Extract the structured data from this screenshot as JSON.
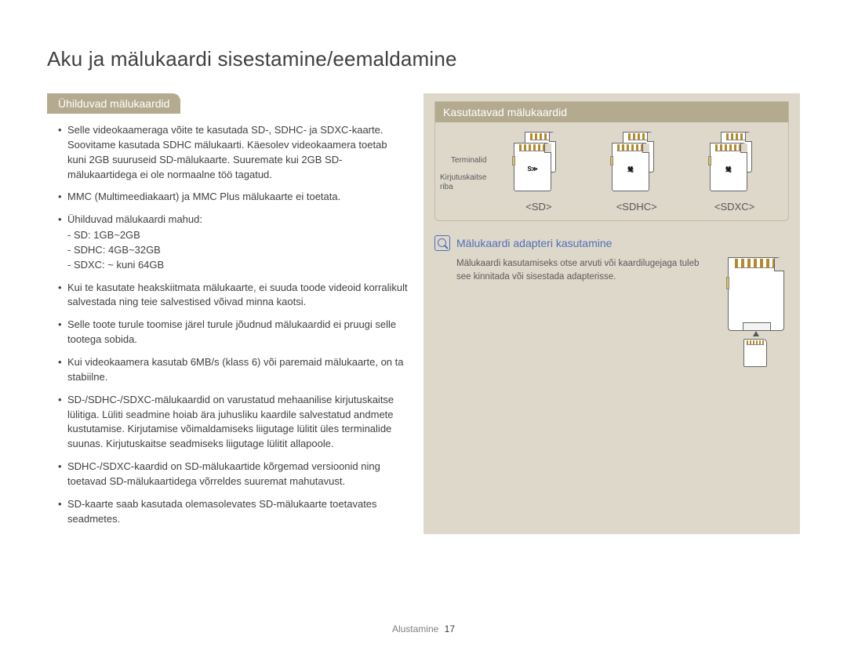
{
  "title": "Aku ja mälukaardi sisestamine/eemaldamine",
  "section_heading": "Ühilduvad mälukaardid",
  "bullets": {
    "b1": "Selle videokaameraga võite te kasutada SD-, SDHC- ja SDXC-kaarte. Soovitame kasutada SDHC mälukaarti. Käesolev videokaamera toetab kuni 2GB suuruseid SD-mälukaarte. Suuremate kui 2GB SD-mälukaartidega ei ole normaalne töö tagatud.",
    "b2": "MMC (Multimeediakaart) ja MMC Plus mälukaarte ei toetata.",
    "b3": "Ühilduvad mälukaardi mahud:",
    "b3a": "- SD: 1GB~2GB",
    "b3b": "- SDHC: 4GB~32GB",
    "b3c": "- SDXC: ~ kuni 64GB",
    "b4": "Kui te kasutate heakskiitmata mälukaarte, ei suuda toode videoid korralikult salvestada ning teie salvestised võivad minna kaotsi.",
    "b5": "Selle toote turule toomise järel turule jõudnud mälukaardid ei pruugi selle tootega sobida.",
    "b6": "Kui videokaamera kasutab 6MB/s (klass 6) või paremaid mälukaarte, on ta stabiilne.",
    "b7": "SD-/SDHC-/SDXC-mälukaardid on varustatud mehaanilise kirjutuskaitse lülitiga. Lüliti seadmine hoiab ära juhusliku kaardile salvestatud andmete kustutamise. Kirjutamise võimaldamiseks liigutage lülitit üles terminalide suunas. Kirjutuskaitse seadmiseks liigutage lülitit allapoole.",
    "b8": "SDHC-/SDXC-kaardid on SD-mälukaartide kõrgemad versioonid ning toetavad SD-mälukaartidega võrreldes suuremat mahutavust.",
    "b9": "SD-kaarte saab kasutada olemasolevates SD-mälukaarte toetavates seadmetes."
  },
  "cards_box": {
    "header": "Kasutatavad mälukaardid",
    "label_terminals": "Terminalid",
    "label_lock1": "Kirjutuskaitse",
    "label_lock2": "riba",
    "sd": "<SD>",
    "sdhc": "<SDHC>",
    "sdxc": "<SDXC>",
    "logo_sd": "S≫",
    "logo_sdhc": "鸶",
    "logo_sdxc": "鸶"
  },
  "adapter": {
    "title": "Mälukaardi adapteri kasutamine",
    "text": "Mälukaardi kasutamiseks otse arvuti või kaardilugejaga tuleb see kinnitada või sisestada adapterisse."
  },
  "footer": {
    "section": "Alustamine",
    "page": "17"
  },
  "colors": {
    "tab_bg": "#b4aa8f",
    "panel_bg": "#ded8cb",
    "accent_blue": "#4f6fb7",
    "text": "#404040"
  }
}
